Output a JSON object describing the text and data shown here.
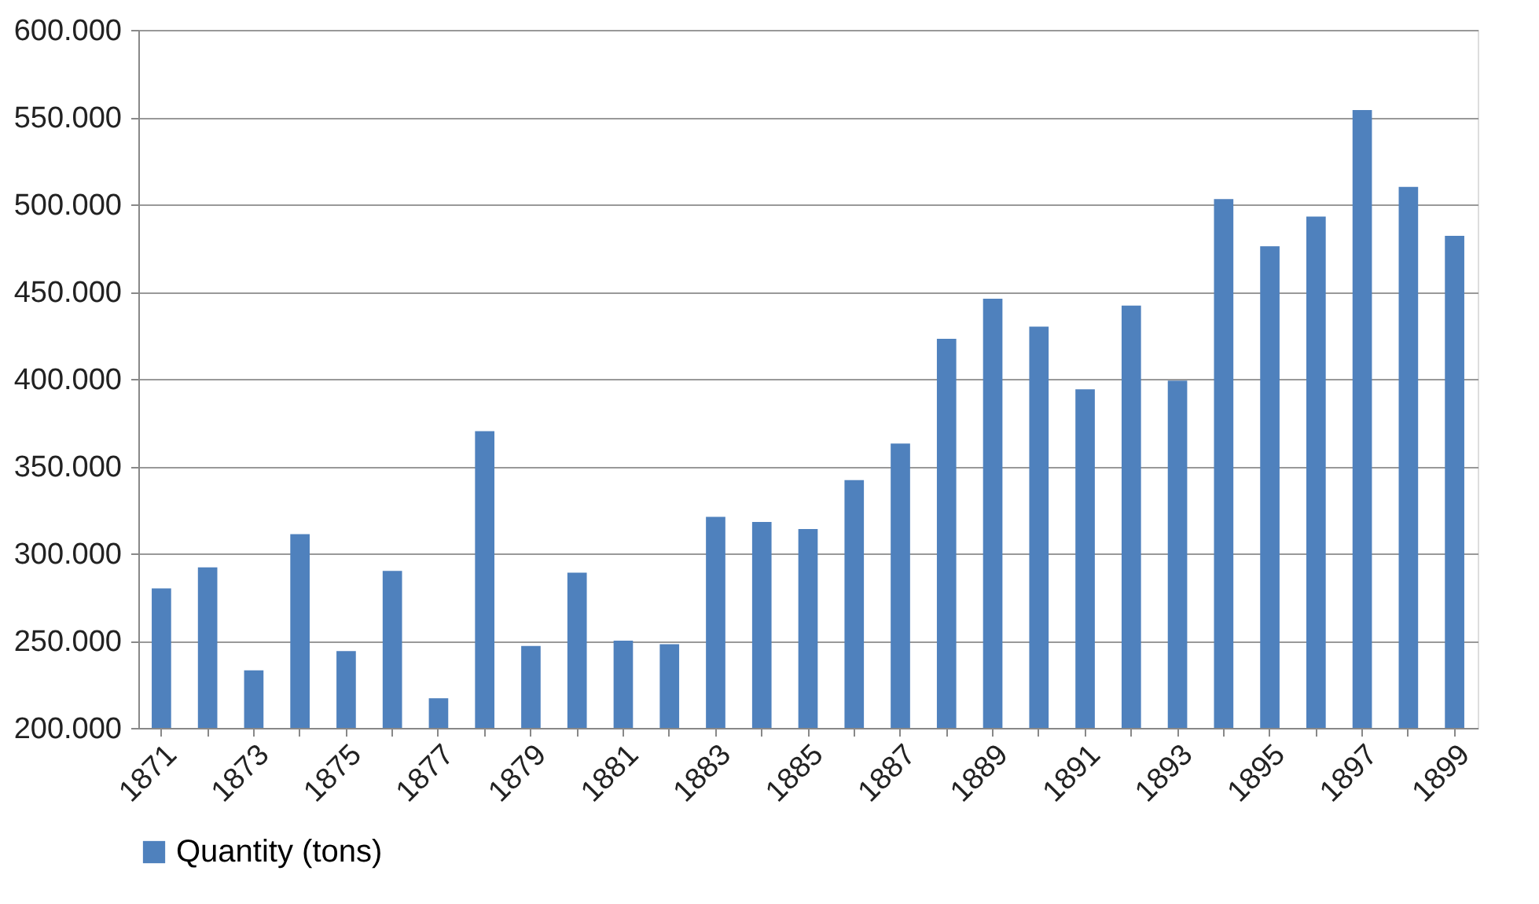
{
  "chart_data": {
    "type": "bar",
    "categories": [
      "1871",
      null,
      "1873",
      null,
      "1875",
      null,
      "1877",
      null,
      "1879",
      null,
      "1881",
      null,
      "1883",
      null,
      "1885",
      null,
      "1887",
      null,
      "1889",
      null,
      "1891",
      null,
      "1893",
      null,
      "1895",
      null,
      "1897",
      null,
      "1899"
    ],
    "series": [
      {
        "name": "Quantity (tons)",
        "color": "#4f81bd",
        "values": [
          280000,
          292000,
          233000,
          311000,
          244000,
          290000,
          217000,
          370000,
          247000,
          289000,
          250000,
          248000,
          321000,
          318000,
          314000,
          342000,
          363000,
          423000,
          446000,
          430000,
          394000,
          442000,
          399000,
          503000,
          476000,
          493000,
          554000,
          510000,
          482000
        ]
      }
    ],
    "ylim": [
      200000,
      600000
    ],
    "yticks": [
      {
        "value": 200000,
        "label": "200.000"
      },
      {
        "value": 250000,
        "label": "250.000"
      },
      {
        "value": 300000,
        "label": "300.000"
      },
      {
        "value": 350000,
        "label": "350.000"
      },
      {
        "value": 400000,
        "label": "400.000"
      },
      {
        "value": 450000,
        "label": "450.000"
      },
      {
        "value": 500000,
        "label": "500.000"
      },
      {
        "value": 550000,
        "label": "550.000"
      },
      {
        "value": 600000,
        "label": "600.000"
      }
    ],
    "grid": "y",
    "legend": "bottom"
  }
}
